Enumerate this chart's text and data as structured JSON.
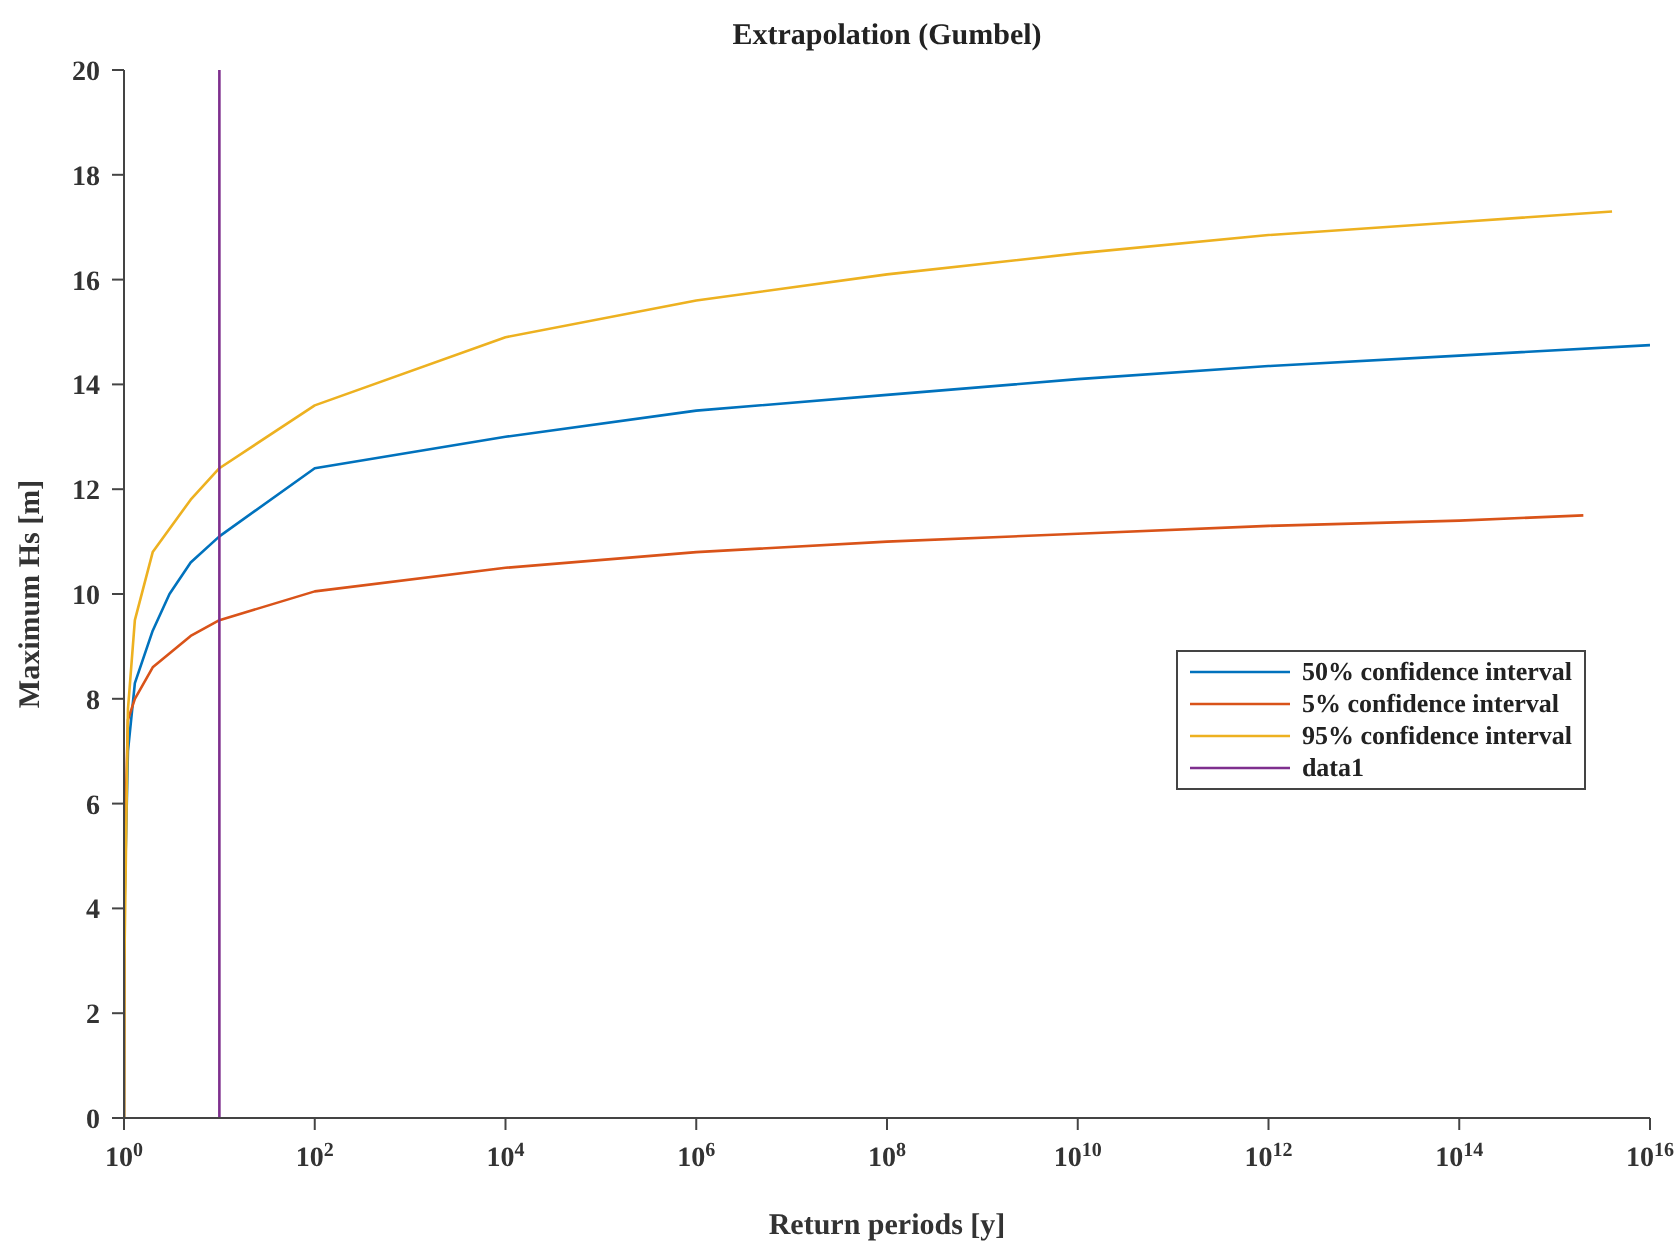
{
  "chart_data": {
    "type": "line",
    "title": "Extrapolation (Gumbel)",
    "xlabel": "Return periods [y]",
    "ylabel": "Maximum Hs [m]",
    "log": "x",
    "xlim": [
      1,
      1e+16
    ],
    "ylim": [
      0,
      20
    ],
    "xticks": [
      {
        "value": 1,
        "label": "10$^{0}$"
      },
      {
        "value": 100,
        "label": "10$^{2}$"
      },
      {
        "value": 10000,
        "label": "10$^{4}$"
      },
      {
        "value": 1000000,
        "label": "10$^{6}$"
      },
      {
        "value": 100000000,
        "label": "10$^{8}$"
      },
      {
        "value": 10000000000,
        "label": "10$^{10}$"
      },
      {
        "value": 1000000000000,
        "label": "10$^{12}$"
      },
      {
        "value": 100000000000000,
        "label": "10$^{14}$"
      },
      {
        "value": 10000000000000000,
        "label": "10$^{16}$"
      }
    ],
    "yticks": [
      0,
      2,
      4,
      6,
      8,
      10,
      12,
      14,
      16,
      18,
      20
    ],
    "legend": "right",
    "line_style": "solid",
    "marker": "none",
    "series": [
      {
        "name": "50% confidence interval",
        "color": "#0072bd",
        "x": [
          1.001,
          1.01,
          1.1,
          1.3,
          2,
          3,
          5,
          10,
          100,
          10000,
          1000000,
          100000000,
          10000000000,
          1000000000000,
          100000000000000,
          10000000000000000
        ],
        "values": [
          0,
          4,
          7,
          8.3,
          9.3,
          10,
          10.6,
          11.1,
          12.4,
          13,
          13.5,
          13.8,
          14.1,
          14.35,
          14.55,
          14.75
        ]
      },
      {
        "name": "5% confidence interval",
        "color": "#d95319",
        "x": [
          1.001,
          1.01,
          1.1,
          1.3,
          2,
          5,
          10,
          100,
          10000,
          1000000,
          100000000,
          10000000000,
          1000000000000,
          100000000000000,
          2000000000000000
        ],
        "values": [
          0,
          5,
          7.6,
          8,
          8.6,
          9.2,
          9.5,
          10.05,
          10.5,
          10.8,
          11,
          11.15,
          11.3,
          11.4,
          11.5
        ]
      },
      {
        "name": "95% confidence interval",
        "color": "#edb120",
        "x": [
          1.001,
          1.01,
          1.1,
          1.3,
          2,
          5,
          10,
          100,
          10000,
          1000000,
          100000000,
          10000000000,
          1000000000000,
          100000000000000,
          4000000000000000
        ],
        "values": [
          0,
          3,
          7.8,
          9.5,
          10.8,
          11.8,
          12.4,
          13.6,
          14.9,
          15.6,
          16.1,
          16.5,
          16.85,
          17.1,
          17.3
        ]
      },
      {
        "name": "data1",
        "color": "#7e2f8e",
        "x": [
          10,
          10
        ],
        "values": [
          0,
          20
        ]
      }
    ]
  }
}
